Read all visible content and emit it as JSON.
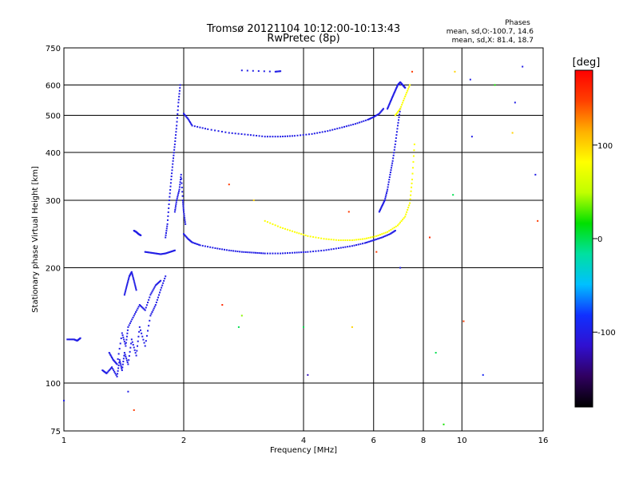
{
  "chart_data": {
    "type": "scatter",
    "title": "Tromsø 20121104 10:12:00-10:13:43",
    "subtitle": "RwPretec (8p)",
    "xlabel": "Frequency [MHz]",
    "ylabel": "Stationary phase Virtual Height [km]",
    "x_scale": "log",
    "y_scale": "log",
    "xlim": [
      1,
      16
    ],
    "ylim": [
      75,
      750
    ],
    "x_ticks": [
      1,
      2,
      4,
      6,
      8,
      10,
      16
    ],
    "y_ticks": [
      75,
      100,
      200,
      300,
      400,
      500,
      600,
      750
    ],
    "grid": true,
    "stats": {
      "title": "Phases",
      "line1": "mean, sd,O:-100.7, 14.6",
      "line2": "mean, sd,X: 81.4, 18.7"
    },
    "colorbar": {
      "label": "[deg]",
      "ticks": [
        100,
        0,
        -100
      ],
      "range": [
        -180,
        180
      ],
      "colors": [
        "#000000",
        "#300060",
        "#3010d0",
        "#1030ff",
        "#00c0ff",
        "#00e0a0",
        "#00e000",
        "#c0ff00",
        "#ffff00",
        "#ffb000",
        "#ff4000",
        "#ff0000"
      ]
    },
    "series": [
      {
        "mode": "O",
        "phase_deg": -100,
        "traces": [
          {
            "x": [
              1.02,
              1.06,
              1.08,
              1.1
            ],
            "y": [
              130,
              130,
              129,
              131
            ]
          },
          {
            "x": [
              1.25,
              1.28,
              1.32,
              1.36,
              1.38,
              1.4,
              1.42,
              1.45,
              1.48,
              1.52,
              1.55,
              1.6,
              1.65,
              1.7,
              1.75,
              1.8
            ],
            "y": [
              108,
              106,
              110,
              104,
              115,
              108,
              120,
              112,
              130,
              118,
              140,
              125,
              150,
              160,
              175,
              190
            ]
          },
          {
            "x": [
              1.3,
              1.33,
              1.36,
              1.4,
              1.43,
              1.45,
              1.5,
              1.55,
              1.6,
              1.65,
              1.7,
              1.75
            ],
            "y": [
              120,
              115,
              112,
              135,
              125,
              140,
              150,
              160,
              155,
              170,
              180,
              185
            ]
          },
          {
            "x": [
              1.42,
              1.44,
              1.46,
              1.48,
              1.5,
              1.52
            ],
            "y": [
              170,
              180,
              190,
              195,
              185,
              175
            ]
          },
          {
            "x": [
              1.5,
              1.52,
              1.54,
              1.56
            ],
            "y": [
              250,
              248,
              245,
              243
            ]
          },
          {
            "x": [
              1.8,
              1.82,
              1.84,
              1.86,
              1.88,
              1.9,
              1.92,
              1.94,
              1.96
            ],
            "y": [
              240,
              260,
              300,
              340,
              380,
              420,
              470,
              540,
              600
            ]
          },
          {
            "x": [
              1.9,
              1.92,
              1.95,
              1.97,
              1.99,
              2.0,
              2.02
            ],
            "y": [
              280,
              300,
              320,
              350,
              300,
              280,
              260
            ]
          },
          {
            "x": [
              1.6,
              1.65,
              1.7,
              1.75,
              1.8,
              1.85,
              1.9
            ],
            "y": [
              220,
              219,
              218,
              217,
              218,
              220,
              222
            ]
          },
          {
            "x": [
              2.0,
              2.05,
              2.1,
              2.2,
              2.4,
              2.6,
              2.8,
              3.0,
              3.2,
              3.5,
              3.8,
              4.1,
              4.5,
              4.9,
              5.3,
              5.7,
              6.0,
              6.3,
              6.6,
              6.8
            ],
            "y": [
              245,
              238,
              233,
              229,
              225,
              222,
              220,
              219,
              218,
              218,
              219,
              220,
              222,
              225,
              228,
              232,
              236,
              240,
              245,
              250
            ]
          },
          {
            "x": [
              2.0,
              2.05,
              2.1,
              2.3,
              2.6,
              2.9,
              3.2,
              3.5,
              3.8,
              4.2,
              4.6,
              5.0,
              5.4,
              5.8,
              6.0,
              6.2,
              6.35
            ],
            "y": [
              505,
              490,
              470,
              460,
              450,
              445,
              440,
              440,
              442,
              447,
              455,
              465,
              475,
              487,
              495,
              505,
              520
            ]
          },
          {
            "x": [
              6.2,
              6.3,
              6.4,
              6.5,
              6.6,
              6.7,
              6.8,
              6.9,
              7.0
            ],
            "y": [
              280,
              290,
              300,
              320,
              350,
              380,
              420,
              470,
              520
            ]
          },
          {
            "x": [
              6.5,
              6.6,
              6.7,
              6.8,
              6.9,
              7.0,
              7.1,
              7.2
            ],
            "y": [
              520,
              540,
              560,
              580,
              600,
              610,
              600,
              590
            ]
          },
          {
            "x": [
              2.8,
              3.4,
              3.5
            ],
            "y": [
              655,
              650,
              652
            ]
          }
        ]
      },
      {
        "mode": "X",
        "phase_deg": 80,
        "traces": [
          {
            "x": [
              3.2,
              3.5,
              3.8,
              4.1,
              4.5,
              4.9,
              5.3,
              5.7,
              6.1,
              6.5,
              6.9,
              7.2,
              7.4,
              7.5,
              7.6
            ],
            "y": [
              265,
              255,
              248,
              242,
              238,
              236,
              236,
              238,
              242,
              248,
              258,
              272,
              295,
              340,
              420
            ]
          },
          {
            "x": [
              6.8,
              7.0,
              7.2,
              7.4
            ],
            "y": [
              500,
              520,
              560,
              600
            ]
          }
        ]
      }
    ],
    "noise_points": [
      {
        "x": 1.0,
        "y": 90,
        "phase_deg": -100
      },
      {
        "x": 1.5,
        "y": 85,
        "phase_deg": 150
      },
      {
        "x": 1.45,
        "y": 95,
        "phase_deg": -100
      },
      {
        "x": 2.5,
        "y": 160,
        "phase_deg": 160
      },
      {
        "x": 2.8,
        "y": 150,
        "phase_deg": 40
      },
      {
        "x": 2.6,
        "y": 330,
        "phase_deg": 150
      },
      {
        "x": 2.75,
        "y": 140,
        "phase_deg": 0
      },
      {
        "x": 3.0,
        "y": 300,
        "phase_deg": 100
      },
      {
        "x": 4.0,
        "y": 140,
        "phase_deg": 0
      },
      {
        "x": 4.1,
        "y": 105,
        "phase_deg": -120
      },
      {
        "x": 5.2,
        "y": 280,
        "phase_deg": 150
      },
      {
        "x": 5.3,
        "y": 140,
        "phase_deg": 100
      },
      {
        "x": 6.1,
        "y": 220,
        "phase_deg": 150
      },
      {
        "x": 7.0,
        "y": 200,
        "phase_deg": -100
      },
      {
        "x": 7.5,
        "y": 650,
        "phase_deg": 150
      },
      {
        "x": 8.3,
        "y": 240,
        "phase_deg": 160
      },
      {
        "x": 8.6,
        "y": 120,
        "phase_deg": 0
      },
      {
        "x": 9.0,
        "y": 78,
        "phase_deg": 20
      },
      {
        "x": 9.5,
        "y": 310,
        "phase_deg": 0
      },
      {
        "x": 9.6,
        "y": 650,
        "phase_deg": 100
      },
      {
        "x": 10.1,
        "y": 145,
        "phase_deg": 150
      },
      {
        "x": 10.5,
        "y": 620,
        "phase_deg": -100
      },
      {
        "x": 10.6,
        "y": 440,
        "phase_deg": -100
      },
      {
        "x": 11.3,
        "y": 105,
        "phase_deg": -90
      },
      {
        "x": 12.1,
        "y": 600,
        "phase_deg": 20
      },
      {
        "x": 13.4,
        "y": 450,
        "phase_deg": 100
      },
      {
        "x": 13.6,
        "y": 540,
        "phase_deg": -100
      },
      {
        "x": 14.2,
        "y": 670,
        "phase_deg": -100
      },
      {
        "x": 15.3,
        "y": 350,
        "phase_deg": -100
      },
      {
        "x": 15.5,
        "y": 265,
        "phase_deg": 150
      }
    ]
  }
}
